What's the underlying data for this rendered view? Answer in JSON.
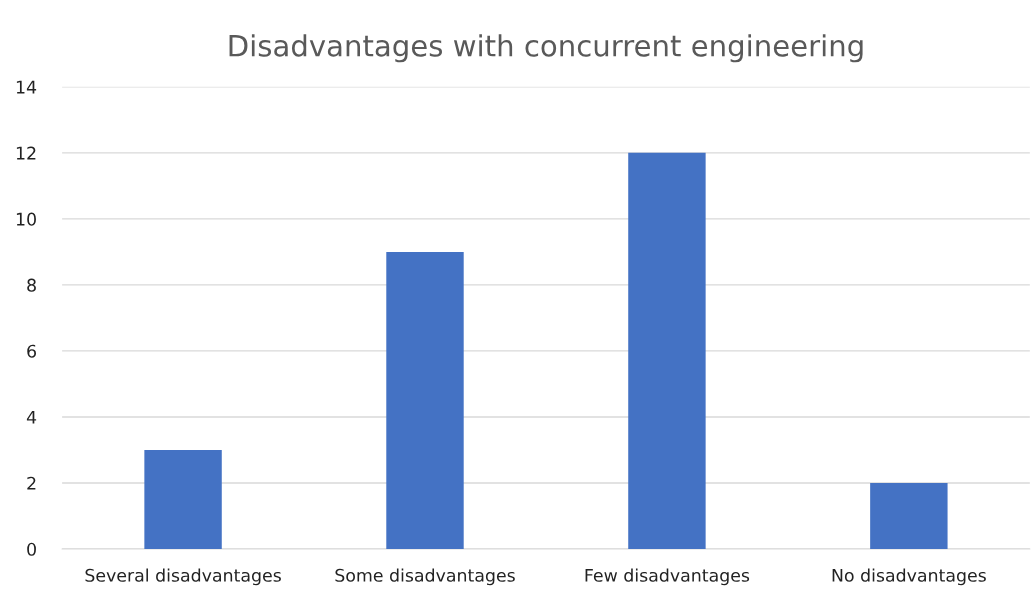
{
  "chart_data": {
    "type": "bar",
    "title": "Disadvantages with concurrent engineering",
    "categories": [
      "Several disadvantages",
      "Some disadvantages",
      "Few disadvantages",
      "No disadvantages"
    ],
    "values": [
      3,
      9,
      12,
      2
    ],
    "color": "#4472c4",
    "ylim": [
      0,
      14
    ],
    "yticks": [
      0,
      2,
      4,
      6,
      8,
      10,
      12,
      14
    ],
    "grid": "y",
    "legend": false
  }
}
